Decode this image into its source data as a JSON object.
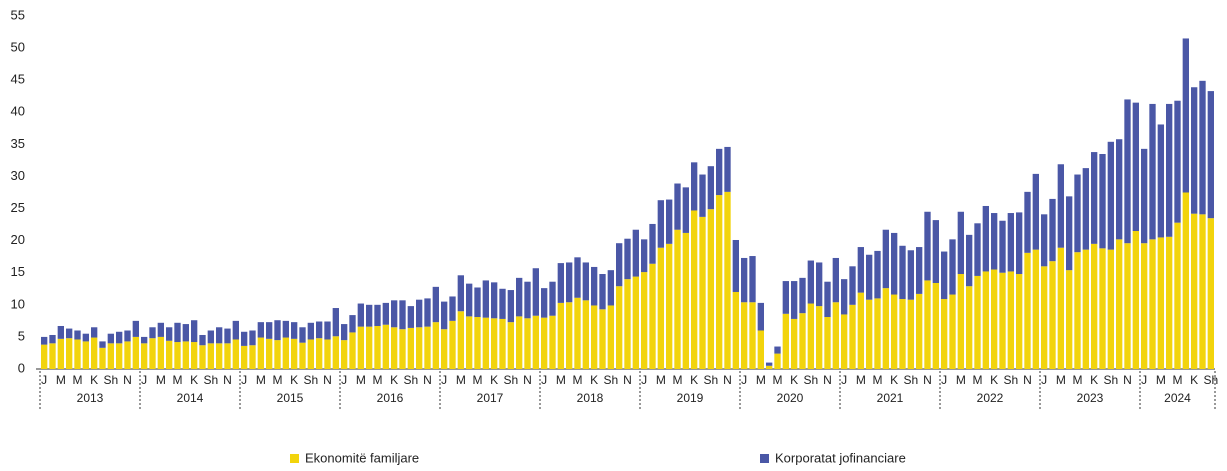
{
  "chart_data": {
    "type": "stacked_bar",
    "categories": [
      "J",
      null,
      "M",
      null,
      "M",
      null,
      "K",
      null,
      "Sh",
      null,
      "N",
      null,
      "J",
      null,
      "M",
      null,
      "M",
      null,
      "K",
      null,
      "Sh",
      null,
      "N",
      null,
      "J",
      null,
      "M",
      null,
      "M",
      null,
      "K",
      null,
      "Sh",
      null,
      "N",
      null,
      "J",
      null,
      "M",
      null,
      "M",
      null,
      "K",
      null,
      "Sh",
      null,
      "N",
      null,
      "J",
      null,
      "M",
      null,
      "M",
      null,
      "K",
      null,
      "Sh",
      null,
      "N",
      null,
      "J",
      null,
      "M",
      null,
      "M",
      null,
      "K",
      null,
      "Sh",
      null,
      "N",
      null,
      "J",
      null,
      "M",
      null,
      "M",
      null,
      "K",
      null,
      "Sh",
      null,
      "N",
      null,
      "J",
      null,
      "M",
      null,
      "M",
      null,
      "K",
      null,
      "Sh",
      null,
      "N",
      null,
      "J",
      null,
      "M",
      null,
      "M",
      null,
      "K",
      null,
      "Sh",
      null,
      "N",
      null,
      "J",
      null,
      "M",
      null,
      "M",
      null,
      "K",
      null,
      "Sh",
      null,
      "N",
      null,
      "J",
      null,
      "M",
      null,
      "M",
      null,
      "K",
      null,
      "Sh",
      null,
      "N",
      null,
      "J",
      null,
      "M",
      null,
      "M",
      null,
      "K",
      null,
      "Sh"
    ],
    "years": [
      "2013",
      "2014",
      "2015",
      "2016",
      "2017",
      "2018",
      "2019",
      "2020",
      "2021",
      "2022",
      "2023",
      "2024"
    ],
    "series": [
      {
        "name": "Ekonomitë familjare",
        "color": "#f2d40c",
        "values": [
          3.8,
          4.0,
          4.7,
          4.8,
          4.6,
          4.3,
          4.9,
          3.3,
          4.0,
          4.0,
          4.3,
          5.0,
          4.0,
          4.8,
          5.0,
          4.4,
          4.2,
          4.3,
          4.2,
          3.7,
          4.0,
          4.0,
          4.0,
          4.6,
          3.6,
          3.7,
          4.9,
          4.7,
          4.5,
          4.9,
          4.7,
          4.1,
          4.6,
          4.8,
          4.6,
          5.1,
          4.5,
          5.7,
          6.6,
          6.6,
          6.7,
          6.9,
          6.5,
          6.2,
          6.4,
          6.5,
          6.6,
          7.3,
          6.2,
          7.5,
          9.0,
          8.2,
          8.1,
          8.0,
          7.9,
          7.8,
          7.3,
          8.2,
          7.9,
          8.3,
          8.0,
          8.3,
          10.3,
          10.4,
          11.1,
          10.7,
          9.9,
          9.3,
          9.9,
          12.9,
          14.0,
          14.4,
          15.1,
          16.4,
          18.9,
          19.5,
          21.7,
          21.2,
          24.7,
          23.7,
          24.9,
          27.1,
          27.6,
          12.0,
          10.4,
          10.4,
          6.0,
          0.5,
          2.4,
          8.6,
          7.8,
          8.7,
          10.2,
          9.8,
          8.1,
          10.4,
          8.5,
          10.0,
          11.9,
          10.8,
          11.0,
          12.6,
          11.6,
          10.9,
          10.8,
          11.7,
          13.8,
          13.4,
          10.9,
          11.6,
          14.8,
          12.9,
          14.5,
          15.2,
          15.5,
          15.0,
          15.2,
          14.8,
          18.1,
          18.6,
          16.0,
          16.8,
          18.9,
          15.4,
          18.2,
          18.6,
          19.5,
          18.8,
          18.6,
          20.2,
          19.6,
          21.5,
          19.6,
          20.2,
          20.5,
          20.6,
          22.8,
          27.5,
          24.2,
          24.1,
          23.5
        ]
      },
      {
        "name": "Korporatat jofinanciare",
        "color": "#4a57a6",
        "values": [
          1.2,
          1.3,
          2.0,
          1.5,
          1.4,
          1.2,
          1.6,
          1.0,
          1.5,
          1.8,
          1.7,
          2.5,
          1.0,
          1.7,
          2.2,
          2.1,
          3.0,
          2.7,
          3.4,
          1.6,
          2.0,
          2.5,
          2.3,
          2.9,
          2.2,
          2.3,
          2.4,
          2.6,
          3.1,
          2.6,
          2.6,
          2.4,
          2.6,
          2.6,
          2.8,
          4.4,
          2.5,
          2.7,
          3.6,
          3.4,
          3.3,
          3.4,
          4.2,
          4.5,
          3.4,
          4.3,
          4.4,
          5.5,
          4.3,
          3.8,
          5.6,
          5.1,
          4.6,
          5.8,
          5.6,
          4.7,
          5.0,
          6.0,
          5.7,
          7.4,
          4.6,
          5.3,
          6.2,
          6.2,
          6.3,
          5.9,
          6.0,
          5.5,
          5.5,
          6.7,
          6.3,
          7.3,
          5.1,
          6.2,
          7.4,
          6.9,
          7.2,
          7.1,
          7.5,
          6.6,
          6.7,
          7.2,
          7.0,
          8.1,
          6.9,
          7.2,
          4.3,
          0.5,
          1.1,
          5.1,
          5.9,
          5.5,
          6.7,
          6.8,
          5.5,
          6.9,
          5.5,
          6.0,
          7.1,
          7.0,
          7.4,
          9.1,
          9.6,
          8.3,
          7.7,
          7.3,
          10.7,
          9.8,
          7.4,
          8.6,
          9.7,
          8.0,
          8.2,
          10.2,
          8.8,
          8.1,
          9.1,
          9.6,
          9.5,
          11.8,
          8.1,
          9.7,
          13.0,
          11.5,
          12.1,
          12.7,
          14.3,
          14.7,
          16.8,
          15.6,
          22.4,
          20.0,
          14.7,
          21.1,
          17.6,
          20.7,
          19.0,
          24.0,
          19.7,
          20.8,
          19.8
        ]
      }
    ],
    "ylim": [
      0,
      55
    ],
    "yticks": [
      0,
      5,
      10,
      15,
      20,
      25,
      30,
      35,
      40,
      45,
      50,
      55
    ],
    "grid": false,
    "legend": "bottom"
  }
}
